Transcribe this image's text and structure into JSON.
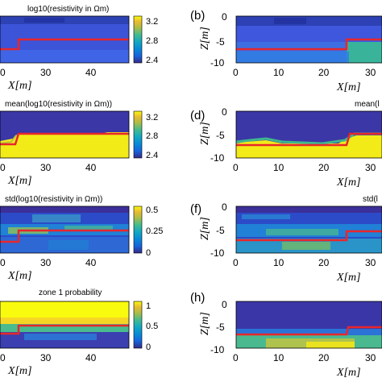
{
  "chart_data": [
    {
      "type": "heatmap",
      "panel": "a",
      "title": "log10(resistivity in Ωm)",
      "xlabel": "X[m]",
      "x_ticks": [
        "0",
        "30",
        "40"
      ],
      "colorbar_ticks": [
        "3.2",
        "2.8",
        "2.4"
      ],
      "colorbar_range": [
        2.3,
        3.3
      ],
      "red_boundary": {
        "x_step": 24,
        "z_left": -7,
        "z_right": -5.5
      }
    },
    {
      "type": "heatmap",
      "panel": "b",
      "ylabel": "Z[m]",
      "xlabel": "X[m]",
      "x_ticks": [
        "0",
        "10",
        "20",
        "30"
      ],
      "y_ticks": [
        "0",
        "-5",
        "-10"
      ],
      "red_boundary": {
        "x_step": 24,
        "z_left": -7,
        "z_right": -5.5
      }
    },
    {
      "type": "heatmap",
      "panel": "c",
      "title": "mean(log10(resistivity in Ωm))",
      "xlabel": "X[m]",
      "x_ticks": [
        "0",
        "30",
        "40"
      ],
      "colorbar_ticks": [
        "3.2",
        "2.8",
        "2.4"
      ],
      "colorbar_range": [
        2.3,
        3.3
      ]
    },
    {
      "type": "heatmap",
      "panel": "d",
      "title": "mean(l",
      "ylabel": "Z[m]",
      "xlabel": "X[m]",
      "x_ticks": [
        "0",
        "10",
        "20",
        "30"
      ],
      "y_ticks": [
        "0",
        "-5",
        "-10"
      ]
    },
    {
      "type": "heatmap",
      "panel": "e",
      "title": "std(log10(resistivity in Ωm))",
      "xlabel": "X[m]",
      "x_ticks": [
        "0",
        "20",
        "30",
        "40"
      ],
      "colorbar_ticks": [
        "0.5",
        "0.25",
        "0"
      ],
      "colorbar_range": [
        0,
        0.5
      ]
    },
    {
      "type": "heatmap",
      "panel": "f",
      "title": "std(l",
      "ylabel": "Z[m]",
      "xlabel": "X[m]",
      "x_ticks": [
        "0",
        "10",
        "20",
        "30"
      ],
      "y_ticks": [
        "0",
        "-5",
        "-10"
      ]
    },
    {
      "type": "heatmap",
      "panel": "g",
      "title": "zone 1 probability",
      "xlabel": "X[m]",
      "x_ticks": [
        "0",
        "20",
        "30",
        "40"
      ],
      "colorbar_ticks": [
        "1",
        "0.5",
        "0"
      ],
      "colorbar_range": [
        0,
        1
      ]
    },
    {
      "type": "heatmap",
      "panel": "h",
      "ylabel": "Z[m]",
      "xlabel": "X[m]",
      "x_ticks": [
        "0",
        "10",
        "20",
        "30"
      ],
      "y_ticks": [
        "0",
        "-5",
        "-10"
      ]
    }
  ],
  "panel_labels": [
    "(b)",
    "(d)",
    "(f)",
    "(h)"
  ],
  "colors": {
    "boundary": "#e8262b",
    "dark": "#352a87",
    "blue": "#2f6fe0",
    "teal": "#25b2a3",
    "yellow": "#f9fb0e"
  }
}
